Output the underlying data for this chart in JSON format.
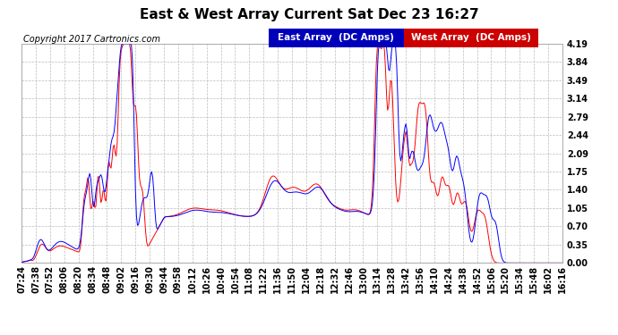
{
  "title": "East & West Array Current Sat Dec 23 16:27",
  "copyright": "Copyright 2017 Cartronics.com",
  "legend_east": "East Array  (DC Amps)",
  "legend_west": "West Array  (DC Amps)",
  "east_color": "#0000ff",
  "west_color": "#ff0000",
  "legend_east_bg": "#0000bb",
  "legend_west_bg": "#cc0000",
  "background_color": "#ffffff",
  "plot_bg_color": "#ffffff",
  "grid_color": "#bbbbbb",
  "ylim": [
    0.0,
    4.19
  ],
  "yticks": [
    0.0,
    0.35,
    0.7,
    1.05,
    1.4,
    1.75,
    2.09,
    2.44,
    2.79,
    3.14,
    3.49,
    3.84,
    4.19
  ],
  "xtick_labels": [
    "07:24",
    "07:38",
    "07:52",
    "08:06",
    "08:20",
    "08:34",
    "08:48",
    "09:02",
    "09:16",
    "09:30",
    "09:44",
    "09:58",
    "10:12",
    "10:26",
    "10:40",
    "10:54",
    "11:08",
    "11:22",
    "11:36",
    "11:50",
    "12:04",
    "12:18",
    "12:32",
    "12:46",
    "13:00",
    "13:14",
    "13:28",
    "13:42",
    "13:56",
    "14:10",
    "14:24",
    "14:38",
    "14:52",
    "15:06",
    "15:20",
    "15:34",
    "15:48",
    "16:02",
    "16:16"
  ],
  "title_fontsize": 11,
  "tick_fontsize": 7,
  "copyright_fontsize": 7,
  "legend_fontsize": 7.5
}
